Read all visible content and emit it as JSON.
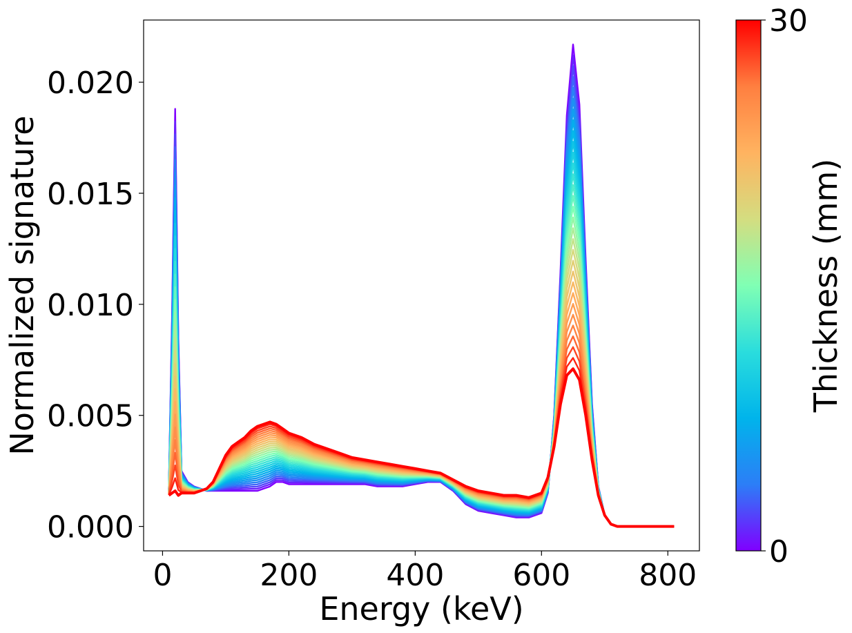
{
  "chart_data": {
    "type": "line",
    "title": "",
    "xlabel": "Energy (keV)",
    "ylabel": "Normalized signature",
    "xlim": [
      -30,
      850
    ],
    "ylim": [
      -0.0011,
      0.0228
    ],
    "xticks": [
      0,
      200,
      400,
      600,
      800
    ],
    "xtick_labels": [
      "0",
      "200",
      "400",
      "600",
      "800"
    ],
    "yticks": [
      0.0,
      0.005,
      0.01,
      0.015,
      0.02
    ],
    "ytick_labels": [
      "0.000",
      "0.005",
      "0.010",
      "0.015",
      "0.020"
    ],
    "grid": false,
    "colorbar": {
      "label": "Thickness (mm)",
      "min": 0,
      "max": 30,
      "tick_labels": [
        "0",
        "30"
      ],
      "colormap": "rainbow",
      "colors": [
        "#8000ff",
        "#2c7ef7",
        "#00b4eb",
        "#2adddd",
        "#80ffb4",
        "#d4dd80",
        "#ffb360",
        "#ff7f40",
        "#ff0000"
      ]
    },
    "series_count": 31,
    "thickness_mm": [
      0,
      1,
      2,
      3,
      4,
      5,
      6,
      7,
      8,
      9,
      10,
      11,
      12,
      13,
      14,
      15,
      16,
      17,
      18,
      19,
      20,
      21,
      22,
      23,
      24,
      25,
      26,
      27,
      28,
      29,
      30
    ],
    "x": [
      10,
      15,
      20,
      25,
      30,
      40,
      50,
      60,
      70,
      80,
      90,
      100,
      110,
      120,
      130,
      140,
      150,
      160,
      170,
      180,
      190,
      200,
      220,
      240,
      260,
      280,
      300,
      320,
      340,
      360,
      380,
      400,
      420,
      440,
      460,
      480,
      500,
      520,
      540,
      560,
      580,
      600,
      610,
      620,
      630,
      640,
      650,
      660,
      670,
      680,
      690,
      700,
      710,
      720,
      740,
      760,
      780,
      800,
      810
    ],
    "thin_series": {
      "name": "0 mm",
      "values": [
        0.0017,
        0.0095,
        0.0188,
        0.0085,
        0.0025,
        0.002,
        0.0018,
        0.0017,
        0.0016,
        0.0016,
        0.0016,
        0.0016,
        0.0016,
        0.0016,
        0.0016,
        0.0016,
        0.0016,
        0.0017,
        0.0018,
        0.002,
        0.002,
        0.0019,
        0.0019,
        0.0019,
        0.0019,
        0.0019,
        0.0019,
        0.0019,
        0.0018,
        0.0018,
        0.0018,
        0.0019,
        0.002,
        0.002,
        0.0016,
        0.001,
        0.0007,
        0.0006,
        0.0005,
        0.0004,
        0.0004,
        0.0006,
        0.0015,
        0.005,
        0.0115,
        0.0185,
        0.0217,
        0.019,
        0.012,
        0.0055,
        0.0018,
        0.0005,
        0.0001,
        0.0,
        0.0,
        0.0,
        0.0,
        0.0,
        0.0
      ]
    },
    "thick_series": {
      "name": "30 mm",
      "values": [
        0.0014,
        0.0015,
        0.0016,
        0.0014,
        0.0015,
        0.0015,
        0.0015,
        0.0016,
        0.0017,
        0.002,
        0.0026,
        0.0032,
        0.0036,
        0.0038,
        0.004,
        0.0043,
        0.0045,
        0.0046,
        0.0047,
        0.0046,
        0.0044,
        0.0042,
        0.004,
        0.0037,
        0.0035,
        0.0033,
        0.0031,
        0.003,
        0.0029,
        0.0028,
        0.0027,
        0.0026,
        0.0025,
        0.0024,
        0.0021,
        0.0018,
        0.0016,
        0.0015,
        0.0014,
        0.0014,
        0.0013,
        0.0015,
        0.0022,
        0.0036,
        0.0055,
        0.0068,
        0.0071,
        0.0066,
        0.005,
        0.003,
        0.0014,
        0.0005,
        0.0001,
        0.0,
        0.0,
        0.0,
        0.0,
        0.0,
        0.0
      ]
    }
  }
}
